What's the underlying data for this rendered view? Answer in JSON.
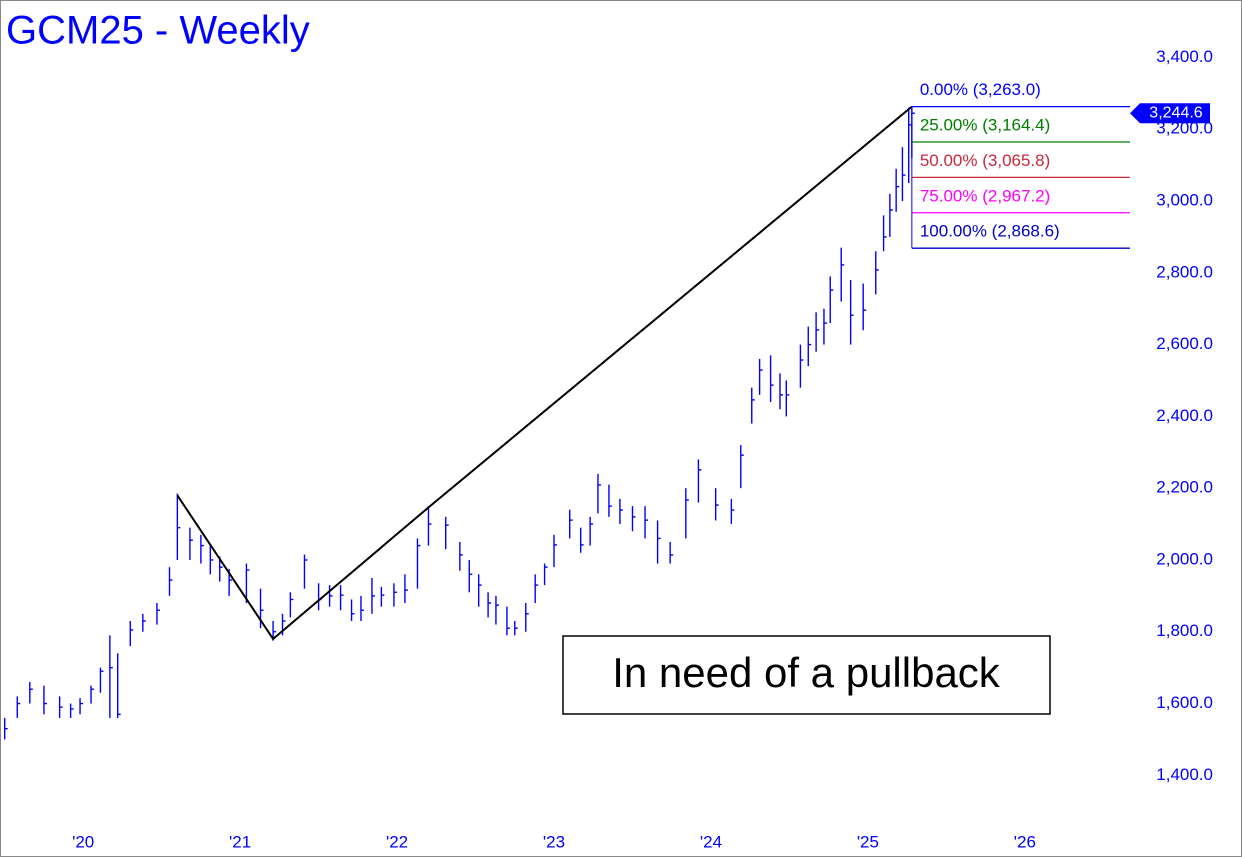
{
  "chart_data": {
    "type": "ohlc",
    "title": "GCM25 - Weekly",
    "annotation": "In need of a pullback",
    "color": "#0000ff",
    "x": [
      2019.5,
      2019.58,
      2019.66,
      2019.75,
      2019.85,
      2019.92,
      2019.98,
      2020.05,
      2020.11,
      2020.17,
      2020.22,
      2020.3,
      2020.38,
      2020.47,
      2020.55,
      2020.6,
      2020.68,
      2020.75,
      2020.81,
      2020.87,
      2020.93,
      2021.04,
      2021.13,
      2021.21,
      2021.27,
      2021.32,
      2021.41,
      2021.5,
      2021.57,
      2021.64,
      2021.71,
      2021.77,
      2021.84,
      2021.9,
      2021.98,
      2022.05,
      2022.13,
      2022.2,
      2022.31,
      2022.4,
      2022.46,
      2022.52,
      2022.58,
      2022.63,
      2022.7,
      2022.75,
      2022.82,
      2022.88,
      2022.94,
      2023.0,
      2023.1,
      2023.17,
      2023.23,
      2023.28,
      2023.35,
      2023.42,
      2023.5,
      2023.58,
      2023.66,
      2023.74,
      2023.84,
      2023.92,
      2024.03,
      2024.13,
      2024.19,
      2024.26,
      2024.31,
      2024.38,
      2024.44,
      2024.48,
      2024.57,
      2024.62,
      2024.67,
      2024.72,
      2024.76,
      2024.83,
      2024.89,
      2024.97,
      2025.05,
      2025.1,
      2025.14,
      2025.18,
      2025.22,
      2025.26,
      2025.28
    ],
    "high": [
      1560,
      1620,
      1660,
      1650,
      1620,
      1600,
      1615,
      1650,
      1700,
      1790,
      1740,
      1830,
      1850,
      1880,
      1980,
      2185,
      2090,
      2070,
      2040,
      2010,
      1975,
      1990,
      1920,
      1830,
      1850,
      1910,
      2015,
      1935,
      1930,
      1930,
      1890,
      1900,
      1950,
      1925,
      1935,
      1960,
      2060,
      2150,
      2120,
      2050,
      2000,
      1960,
      1910,
      1900,
      1870,
      1830,
      1880,
      1960,
      1990,
      2070,
      2140,
      2090,
      2120,
      2240,
      2210,
      2170,
      2150,
      2150,
      2110,
      2050,
      2200,
      2280,
      2200,
      2170,
      2320,
      2480,
      2560,
      2570,
      2520,
      2500,
      2600,
      2650,
      2690,
      2700,
      2790,
      2870,
      2780,
      2770,
      2860,
      2960,
      3020,
      3090,
      3150,
      3260,
      3263
    ],
    "low": [
      1500,
      1560,
      1600,
      1570,
      1560,
      1560,
      1570,
      1600,
      1630,
      1560,
      1560,
      1760,
      1800,
      1820,
      1900,
      2000,
      2000,
      1990,
      1960,
      1940,
      1900,
      1880,
      1810,
      1775,
      1790,
      1840,
      1920,
      1860,
      1870,
      1860,
      1830,
      1830,
      1850,
      1870,
      1870,
      1880,
      1920,
      2040,
      2030,
      1970,
      1910,
      1870,
      1840,
      1820,
      1790,
      1790,
      1800,
      1880,
      1930,
      1980,
      2060,
      2020,
      2040,
      2130,
      2120,
      2100,
      2080,
      2060,
      1990,
      1990,
      2060,
      2160,
      2110,
      2100,
      2200,
      2380,
      2460,
      2440,
      2420,
      2400,
      2480,
      2540,
      2580,
      2600,
      2660,
      2720,
      2600,
      2640,
      2740,
      2860,
      2900,
      2970,
      3000,
      3050,
      3120
    ],
    "close": [
      1530,
      1600,
      1640,
      1600,
      1590,
      1585,
      1600,
      1640,
      1690,
      1700,
      1570,
      1805,
      1830,
      1860,
      1944,
      2090,
      2055,
      2040,
      2000,
      1980,
      1944,
      1972,
      1860,
      1800,
      1830,
      1890,
      2000,
      1890,
      1900,
      1902,
      1850,
      1860,
      1900,
      1902,
      1910,
      1916,
      2040,
      2100,
      2097,
      2014,
      1960,
      1930,
      1880,
      1874,
      1810,
      1810,
      1850,
      1930,
      1980,
      2042,
      2111,
      2042,
      2100,
      2209,
      2150,
      2139,
      2120,
      2111,
      2060,
      2014,
      2167,
      2251,
      2153,
      2139,
      2292,
      2446,
      2529,
      2487,
      2460,
      2460,
      2557,
      2600,
      2641,
      2660,
      2752,
      2822,
      2682,
      2696,
      2808,
      2900,
      2975,
      3040,
      3072,
      3212,
      3244.6
    ],
    "xlim": [
      2019.47,
      2026.67
    ],
    "ylim": [
      1270,
      3560
    ],
    "xticks": [
      {
        "value": 2020,
        "label": "'20"
      },
      {
        "value": 2021,
        "label": "'21"
      },
      {
        "value": 2022,
        "label": "'22"
      },
      {
        "value": 2023,
        "label": "'23"
      },
      {
        "value": 2024,
        "label": "'24"
      },
      {
        "value": 2025,
        "label": "'25"
      },
      {
        "value": 2026,
        "label": "'26"
      }
    ],
    "yticks": [
      {
        "value": 1400,
        "label": "1,400.0"
      },
      {
        "value": 1600,
        "label": "1,600.0"
      },
      {
        "value": 1800,
        "label": "1,800.0"
      },
      {
        "value": 2000,
        "label": "2,000.0"
      },
      {
        "value": 2200,
        "label": "2,200.0"
      },
      {
        "value": 2400,
        "label": "2,400.0"
      },
      {
        "value": 2600,
        "label": "2,600.0"
      },
      {
        "value": 2800,
        "label": "2,800.0"
      },
      {
        "value": 3000,
        "label": "3,000.0"
      },
      {
        "value": 3200,
        "label": "3,200.0"
      },
      {
        "value": 3400,
        "label": "3,400.0"
      }
    ],
    "last_price": {
      "value": 3244.6,
      "label": "3,244.6"
    },
    "swing_line": {
      "x": [
        2020.6,
        2021.21,
        2022.21,
        2025.28
      ],
      "y": [
        2180,
        1780,
        2150,
        3263
      ],
      "color": "#000000"
    },
    "fib_levels": [
      {
        "value": 3263.0,
        "label": "0.00% (3,263.0)",
        "color": "#0000ff"
      },
      {
        "value": 3164.4,
        "label": "25.00% (3,164.4)",
        "color": "#008000"
      },
      {
        "value": 3065.8,
        "label": "50.00% (3,065.8)",
        "color": "#c8283c"
      },
      {
        "value": 2967.2,
        "label": "75.00% (2,967.2)",
        "color": "#ff00ff"
      },
      {
        "value": 2868.6,
        "label": "100.00% (2,868.6)",
        "color": "#0000c8"
      }
    ]
  }
}
